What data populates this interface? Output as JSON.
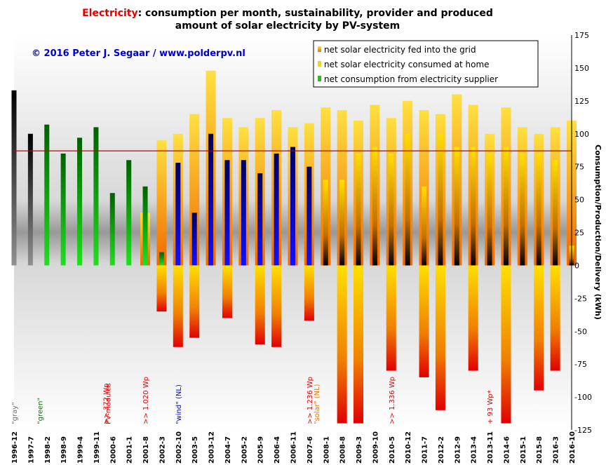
{
  "title": {
    "accent": "Electricity",
    "line1_rest": ": consumption per month, sustainability, provider and produced",
    "line2": "amount of solar electricity by PV-system"
  },
  "copyright": "© 2016 Peter J. Segaar / www.polderpv.nl",
  "colors": {
    "fed_into_grid": "#f07000",
    "consumed_at_home": "#f5d800",
    "net_consumption": "#20c020",
    "gray": "#707070",
    "wind": "#1010d0",
    "reference_line": "#c00000"
  },
  "chart_data": {
    "type": "bar",
    "title": "Electricity: consumption per month, sustainability, provider and produced amount of solar electricity by PV-system",
    "ylabel": "Consumption/Production/Delivery (kWh)",
    "ylim": [
      -125,
      175
    ],
    "y_ticks": [
      175,
      150,
      125,
      100,
      75,
      50,
      25,
      0,
      -25,
      -50,
      -75,
      -100,
      -125
    ],
    "x_tick_labels": [
      "1996-12",
      "1997-7",
      "1998-2",
      "1998-9",
      "1999-4",
      "1999-11",
      "2000-6",
      "2001-1",
      "2001-8",
      "2002-3",
      "2002-10",
      "2003-5",
      "2003-12",
      "2004-7",
      "2005-2",
      "2005-9",
      "2006-4",
      "2006-11",
      "2007-6",
      "2008-1",
      "2008-8",
      "2009-3",
      "2009-10",
      "2010-5",
      "2010-12",
      "2011-7",
      "2012-2",
      "2012-9",
      "2013-4",
      "2013-11",
      "2014-6",
      "2015-1",
      "2015-8",
      "2016-3",
      "2016-10"
    ],
    "reference_line": 87,
    "legend": [
      "net solar electricity fed into the grid",
      "net solar electricity consumed at home",
      "net consumption from electricity supplier"
    ],
    "legend_position": "top-right",
    "grid": false,
    "annotations": [
      {
        "text": "\"gray\"",
        "x": "1996-12",
        "color": "#707070"
      },
      {
        "text": "\"green\"",
        "x": "1997-11",
        "color": "#008000"
      },
      {
        "text": ">> 372 Wp",
        "x": "2000-3",
        "color": "#e00000"
      },
      {
        "text": "PV-modules",
        "x": "2000-4",
        "color": "#e00000"
      },
      {
        "text": ">> 1.020 Wp",
        "x": "2001-8",
        "color": "#e00000"
      },
      {
        "text": "\"wind\" (NL)",
        "x": "2002-10",
        "color": "#0000cc"
      },
      {
        "text": ">> 1.236 Wp",
        "x": "2007-6",
        "color": "#e00000"
      },
      {
        "text": "\"solar\" (NL)",
        "x": "2007-9",
        "color": "#e07800"
      },
      {
        "text": ">> 1.336 Wp",
        "x": "2010-5",
        "color": "#e00000"
      },
      {
        "text": "+ 93 Wp*",
        "x": "2013-11",
        "color": "#e00000"
      }
    ],
    "series": [
      {
        "name": "net solar electricity fed into the grid",
        "periods": [
          "2001-8",
          "2002-3",
          "2002-10",
          "2003-5",
          "2003-12",
          "2004-7",
          "2005-2",
          "2005-9",
          "2006-4",
          "2006-11",
          "2007-6",
          "2008-1",
          "2008-8",
          "2009-3",
          "2009-10",
          "2010-5",
          "2010-12",
          "2011-7",
          "2012-2",
          "2012-9",
          "2013-4",
          "2013-11",
          "2014-6",
          "2015-1",
          "2015-8",
          "2016-3",
          "2016-10"
        ],
        "values": [
          0,
          -35,
          -62,
          -55,
          0,
          -40,
          0,
          -60,
          -62,
          0,
          -42,
          0,
          -120,
          -120,
          0,
          -80,
          0,
          -85,
          -110,
          0,
          -80,
          0,
          -120,
          0,
          -95,
          -80,
          0
        ]
      },
      {
        "name": "net solar electricity consumed at home",
        "periods": [
          "2001-8",
          "2002-3",
          "2002-10",
          "2003-5",
          "2003-12",
          "2004-7",
          "2005-2",
          "2005-9",
          "2006-4",
          "2006-11",
          "2007-6",
          "2008-1",
          "2008-8",
          "2009-3",
          "2009-10",
          "2010-5",
          "2010-12",
          "2011-7",
          "2012-2",
          "2012-9",
          "2013-4",
          "2013-11",
          "2014-6",
          "2015-1",
          "2015-8",
          "2016-3",
          "2016-10"
        ],
        "values": [
          40,
          95,
          100,
          115,
          148,
          112,
          105,
          112,
          118,
          105,
          108,
          120,
          118,
          110,
          122,
          112,
          125,
          118,
          115,
          130,
          122,
          100,
          120,
          105,
          100,
          105,
          110
        ]
      },
      {
        "name": "net consumption from electricity supplier",
        "periods": [
          "1996-12",
          "1997-7",
          "1998-2",
          "1998-9",
          "1999-4",
          "1999-11",
          "2000-6",
          "2001-1",
          "2001-8",
          "2002-3",
          "2002-10",
          "2003-5",
          "2003-12",
          "2004-7",
          "2005-2",
          "2005-9",
          "2006-4",
          "2006-11",
          "2007-6",
          "2008-1",
          "2008-8",
          "2009-3",
          "2009-10",
          "2010-5",
          "2010-12",
          "2011-7",
          "2012-2",
          "2012-9",
          "2013-4",
          "2013-11",
          "2014-6",
          "2015-1",
          "2015-8",
          "2016-3",
          "2016-10"
        ],
        "values": [
          133,
          100,
          107,
          85,
          97,
          105,
          55,
          80,
          60,
          10,
          78,
          40,
          100,
          80,
          80,
          70,
          85,
          90,
          75,
          65,
          65,
          85,
          90,
          85,
          100,
          60,
          100,
          90,
          90,
          85,
          90,
          85,
          85,
          80,
          15
        ]
      }
    ]
  }
}
